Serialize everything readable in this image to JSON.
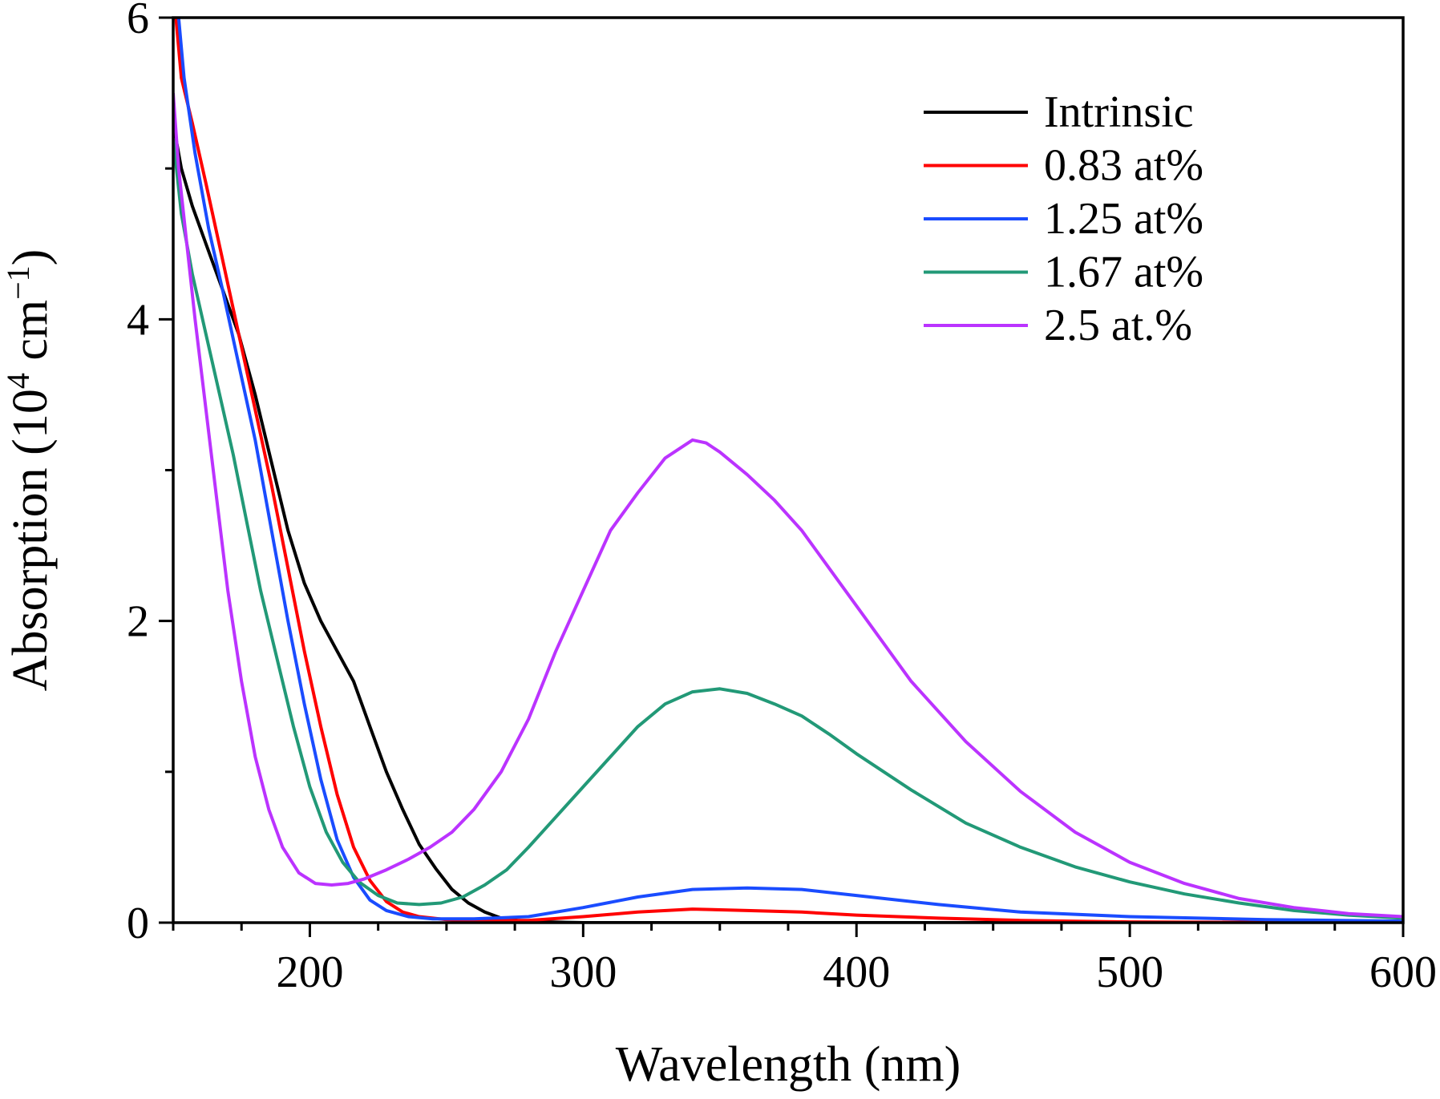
{
  "chart_data": {
    "type": "line",
    "xlabel": "Wavelength (nm)",
    "ylabel": {
      "prefix": "Absorption (10",
      "exp1": "4",
      "middle": " cm",
      "exp2": "−1",
      "suffix": ")"
    },
    "xlim": [
      150,
      600
    ],
    "ylim": [
      0,
      6
    ],
    "xticks": [
      200,
      300,
      400,
      500,
      600
    ],
    "yticks": [
      0,
      2,
      4,
      6
    ],
    "x_minor_step": 25,
    "y_minor_step": 1,
    "grid": false,
    "legend_position": "top-right",
    "series": [
      {
        "name": "Intrinsic",
        "color": "#000000",
        "points": [
          [
            150,
            5.3
          ],
          [
            153,
            5.0
          ],
          [
            157,
            4.75
          ],
          [
            162,
            4.5
          ],
          [
            168,
            4.2
          ],
          [
            174,
            3.9
          ],
          [
            180,
            3.5
          ],
          [
            186,
            3.05
          ],
          [
            192,
            2.6
          ],
          [
            198,
            2.25
          ],
          [
            204,
            2.0
          ],
          [
            210,
            1.8
          ],
          [
            216,
            1.6
          ],
          [
            222,
            1.3
          ],
          [
            228,
            1.0
          ],
          [
            234,
            0.75
          ],
          [
            240,
            0.52
          ],
          [
            246,
            0.36
          ],
          [
            252,
            0.22
          ],
          [
            258,
            0.13
          ],
          [
            264,
            0.07
          ],
          [
            270,
            0.03
          ],
          [
            276,
            0.015
          ],
          [
            282,
            0.008
          ],
          [
            290,
            0.003
          ],
          [
            300,
            0.0
          ],
          [
            350,
            0.0
          ],
          [
            400,
            0.0
          ],
          [
            500,
            0.0
          ],
          [
            600,
            0.0
          ]
        ]
      },
      {
        "name": "0.83 at%",
        "color": "#ff0000",
        "points": [
          [
            151,
            6.0
          ],
          [
            153,
            5.6
          ],
          [
            157,
            5.3
          ],
          [
            162,
            4.9
          ],
          [
            168,
            4.4
          ],
          [
            174,
            3.9
          ],
          [
            180,
            3.4
          ],
          [
            186,
            2.9
          ],
          [
            192,
            2.35
          ],
          [
            198,
            1.8
          ],
          [
            204,
            1.3
          ],
          [
            210,
            0.85
          ],
          [
            216,
            0.5
          ],
          [
            222,
            0.28
          ],
          [
            228,
            0.14
          ],
          [
            234,
            0.07
          ],
          [
            240,
            0.04
          ],
          [
            250,
            0.02
          ],
          [
            260,
            0.015
          ],
          [
            280,
            0.015
          ],
          [
            300,
            0.04
          ],
          [
            320,
            0.07
          ],
          [
            340,
            0.09
          ],
          [
            360,
            0.08
          ],
          [
            380,
            0.07
          ],
          [
            400,
            0.05
          ],
          [
            430,
            0.03
          ],
          [
            460,
            0.015
          ],
          [
            500,
            0.005
          ],
          [
            550,
            0.002
          ],
          [
            600,
            0.0
          ]
        ]
      },
      {
        "name": "1.25 at%",
        "color": "#1a4cff",
        "points": [
          [
            152,
            6.0
          ],
          [
            154,
            5.6
          ],
          [
            158,
            5.1
          ],
          [
            163,
            4.6
          ],
          [
            168,
            4.2
          ],
          [
            174,
            3.7
          ],
          [
            180,
            3.2
          ],
          [
            186,
            2.6
          ],
          [
            192,
            2.0
          ],
          [
            198,
            1.45
          ],
          [
            204,
            0.95
          ],
          [
            210,
            0.55
          ],
          [
            216,
            0.3
          ],
          [
            222,
            0.15
          ],
          [
            228,
            0.08
          ],
          [
            236,
            0.04
          ],
          [
            245,
            0.025
          ],
          [
            260,
            0.025
          ],
          [
            280,
            0.04
          ],
          [
            300,
            0.1
          ],
          [
            320,
            0.17
          ],
          [
            340,
            0.22
          ],
          [
            360,
            0.23
          ],
          [
            380,
            0.22
          ],
          [
            400,
            0.18
          ],
          [
            430,
            0.12
          ],
          [
            460,
            0.07
          ],
          [
            500,
            0.04
          ],
          [
            550,
            0.02
          ],
          [
            600,
            0.01
          ]
        ]
      },
      {
        "name": "1.67 at%",
        "color": "#229977",
        "points": [
          [
            150,
            5.2
          ],
          [
            153,
            4.7
          ],
          [
            157,
            4.3
          ],
          [
            162,
            3.9
          ],
          [
            167,
            3.5
          ],
          [
            172,
            3.1
          ],
          [
            177,
            2.65
          ],
          [
            182,
            2.2
          ],
          [
            188,
            1.75
          ],
          [
            194,
            1.3
          ],
          [
            200,
            0.9
          ],
          [
            206,
            0.6
          ],
          [
            212,
            0.4
          ],
          [
            218,
            0.27
          ],
          [
            225,
            0.18
          ],
          [
            232,
            0.13
          ],
          [
            240,
            0.12
          ],
          [
            248,
            0.13
          ],
          [
            256,
            0.17
          ],
          [
            264,
            0.25
          ],
          [
            272,
            0.35
          ],
          [
            280,
            0.5
          ],
          [
            290,
            0.7
          ],
          [
            300,
            0.9
          ],
          [
            310,
            1.1
          ],
          [
            320,
            1.3
          ],
          [
            330,
            1.45
          ],
          [
            340,
            1.53
          ],
          [
            350,
            1.55
          ],
          [
            360,
            1.52
          ],
          [
            370,
            1.45
          ],
          [
            380,
            1.37
          ],
          [
            390,
            1.25
          ],
          [
            400,
            1.12
          ],
          [
            420,
            0.88
          ],
          [
            440,
            0.66
          ],
          [
            460,
            0.5
          ],
          [
            480,
            0.37
          ],
          [
            500,
            0.27
          ],
          [
            520,
            0.19
          ],
          [
            540,
            0.13
          ],
          [
            560,
            0.08
          ],
          [
            580,
            0.05
          ],
          [
            600,
            0.03
          ]
        ]
      },
      {
        "name": "2.5 at.%",
        "color": "#bb33ff",
        "points": [
          [
            150,
            5.5
          ],
          [
            152,
            5.0
          ],
          [
            155,
            4.5
          ],
          [
            158,
            4.0
          ],
          [
            162,
            3.4
          ],
          [
            166,
            2.8
          ],
          [
            170,
            2.2
          ],
          [
            175,
            1.6
          ],
          [
            180,
            1.1
          ],
          [
            185,
            0.75
          ],
          [
            190,
            0.5
          ],
          [
            196,
            0.33
          ],
          [
            202,
            0.26
          ],
          [
            208,
            0.25
          ],
          [
            214,
            0.26
          ],
          [
            220,
            0.29
          ],
          [
            228,
            0.35
          ],
          [
            236,
            0.42
          ],
          [
            244,
            0.5
          ],
          [
            252,
            0.6
          ],
          [
            260,
            0.75
          ],
          [
            270,
            1.0
          ],
          [
            280,
            1.35
          ],
          [
            290,
            1.8
          ],
          [
            300,
            2.2
          ],
          [
            310,
            2.6
          ],
          [
            320,
            2.85
          ],
          [
            330,
            3.08
          ],
          [
            340,
            3.2
          ],
          [
            345,
            3.18
          ],
          [
            350,
            3.12
          ],
          [
            360,
            2.97
          ],
          [
            370,
            2.8
          ],
          [
            380,
            2.6
          ],
          [
            390,
            2.35
          ],
          [
            400,
            2.1
          ],
          [
            420,
            1.6
          ],
          [
            440,
            1.2
          ],
          [
            460,
            0.87
          ],
          [
            480,
            0.6
          ],
          [
            500,
            0.4
          ],
          [
            520,
            0.26
          ],
          [
            540,
            0.16
          ],
          [
            560,
            0.1
          ],
          [
            580,
            0.06
          ],
          [
            600,
            0.04
          ]
        ]
      }
    ]
  }
}
